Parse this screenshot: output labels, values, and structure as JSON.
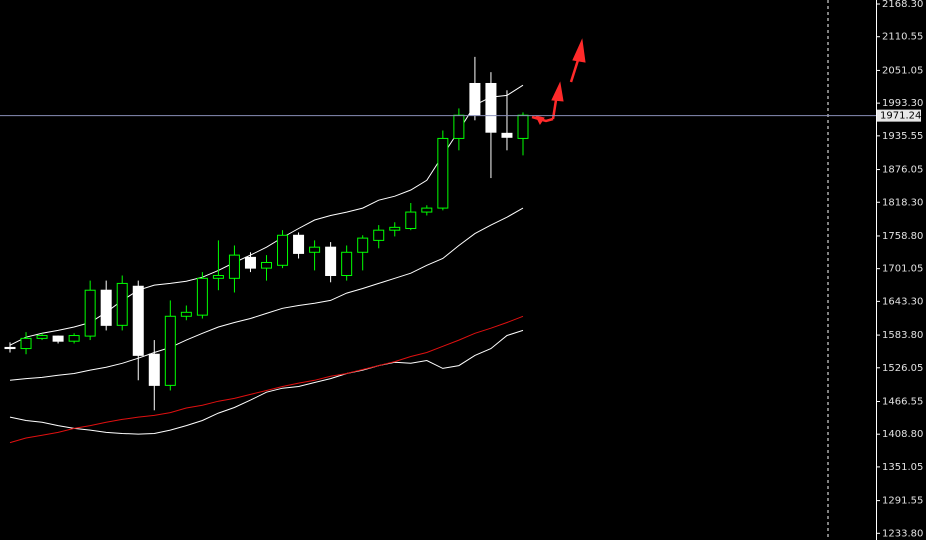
{
  "chart_data": {
    "type": "candlestick",
    "up_color": "#00ff00",
    "down_color": "#ffffff",
    "open": [
      1562,
      1560,
      1578,
      1582,
      1573,
      1582,
      1663,
      1601,
      1670,
      1550,
      1495,
      1617,
      1619,
      1684,
      1684,
      1721,
      1702,
      1707,
      1760,
      1730,
      1739,
      1689,
      1730,
      1751,
      1769,
      1772,
      1801,
      1808,
      1931,
      2028,
      2028,
      1940,
      1931
    ],
    "high": [
      1571,
      1589,
      1587,
      1583,
      1587,
      1680,
      1680,
      1689,
      1680,
      1575,
      1645,
      1636,
      1695,
      1751,
      1742,
      1730,
      1725,
      1769,
      1765,
      1751,
      1748,
      1742,
      1760,
      1778,
      1783,
      1817,
      1813,
      1945,
      1984,
      2075,
      2048,
      2016,
      1977
    ],
    "low": [
      1553,
      1550,
      1575,
      1569,
      1569,
      1575,
      1592,
      1592,
      1504,
      1451,
      1486,
      1610,
      1613,
      1663,
      1659,
      1695,
      1680,
      1702,
      1719,
      1698,
      1677,
      1680,
      1698,
      1737,
      1758,
      1769,
      1795,
      1804,
      1910,
      1963,
      1861,
      1910,
      1901
    ],
    "close": [
      1560,
      1578,
      1583,
      1573,
      1583,
      1663,
      1601,
      1675,
      1548,
      1495,
      1617,
      1624,
      1684,
      1689,
      1725,
      1702,
      1712,
      1760,
      1728,
      1739,
      1689,
      1730,
      1755,
      1769,
      1774,
      1801,
      1808,
      1931,
      1972,
      1972,
      1942,
      1933,
      1972
    ],
    "series": [
      {
        "color": "#ffffff",
        "values": [
          1566,
          1580,
          1587,
          1592,
          1598,
          1606,
          1624,
          1645,
          1663,
          1672,
          1675,
          1679,
          1686,
          1698,
          1712,
          1725,
          1739,
          1756,
          1772,
          1787,
          1795,
          1801,
          1808,
          1822,
          1829,
          1840,
          1857,
          1901,
          1945,
          1990,
          2004,
          2007,
          2025
        ]
      },
      {
        "color": "#ffffff",
        "values": [
          1504,
          1507,
          1509,
          1513,
          1516,
          1522,
          1527,
          1534,
          1543,
          1553,
          1562,
          1575,
          1587,
          1598,
          1606,
          1613,
          1622,
          1631,
          1636,
          1640,
          1645,
          1658,
          1666,
          1675,
          1684,
          1693,
          1707,
          1719,
          1742,
          1763,
          1778,
          1792,
          1808
        ]
      },
      {
        "color": "#ffffff",
        "values": [
          1439,
          1433,
          1430,
          1424,
          1419,
          1416,
          1412,
          1410,
          1409,
          1410,
          1416,
          1424,
          1433,
          1446,
          1456,
          1469,
          1483,
          1490,
          1493,
          1500,
          1507,
          1516,
          1522,
          1530,
          1536,
          1534,
          1539,
          1525,
          1530,
          1548,
          1560,
          1583,
          1592
        ]
      },
      {
        "color": "#e01010",
        "values": [
          1394,
          1402,
          1407,
          1412,
          1419,
          1424,
          1430,
          1435,
          1439,
          1442,
          1447,
          1455,
          1460,
          1467,
          1472,
          1479,
          1486,
          1493,
          1499,
          1504,
          1511,
          1516,
          1523,
          1530,
          1537,
          1546,
          1553,
          1564,
          1575,
          1587,
          1596,
          1606,
          1617
        ]
      }
    ],
    "current_price": 1971.24,
    "ylim": [
      1222,
      2175.4
    ],
    "yticks": [
      {
        "value": 2168.3,
        "label": "2168.30"
      },
      {
        "value": 2110.55,
        "label": "2110.55"
      },
      {
        "value": 2051.05,
        "label": "2051.05"
      },
      {
        "value": 1993.3,
        "label": "1993.30"
      },
      {
        "value": 1935.55,
        "label": "1935.55"
      },
      {
        "value": 1876.05,
        "label": "1876.05"
      },
      {
        "value": 1818.3,
        "label": "1818.30"
      },
      {
        "value": 1758.8,
        "label": "1758.80"
      },
      {
        "value": 1701.05,
        "label": "1701.05"
      },
      {
        "value": 1643.3,
        "label": "1643.30"
      },
      {
        "value": 1583.8,
        "label": "1583.80"
      },
      {
        "value": 1526.05,
        "label": "1526.05"
      },
      {
        "value": 1466.55,
        "label": "1466.55"
      },
      {
        "value": 1408.8,
        "label": "1408.80"
      },
      {
        "value": 1351.05,
        "label": "1351.05"
      },
      {
        "value": 1291.55,
        "label": "1291.55"
      },
      {
        "value": 1233.8,
        "label": "1233.80"
      }
    ]
  }
}
